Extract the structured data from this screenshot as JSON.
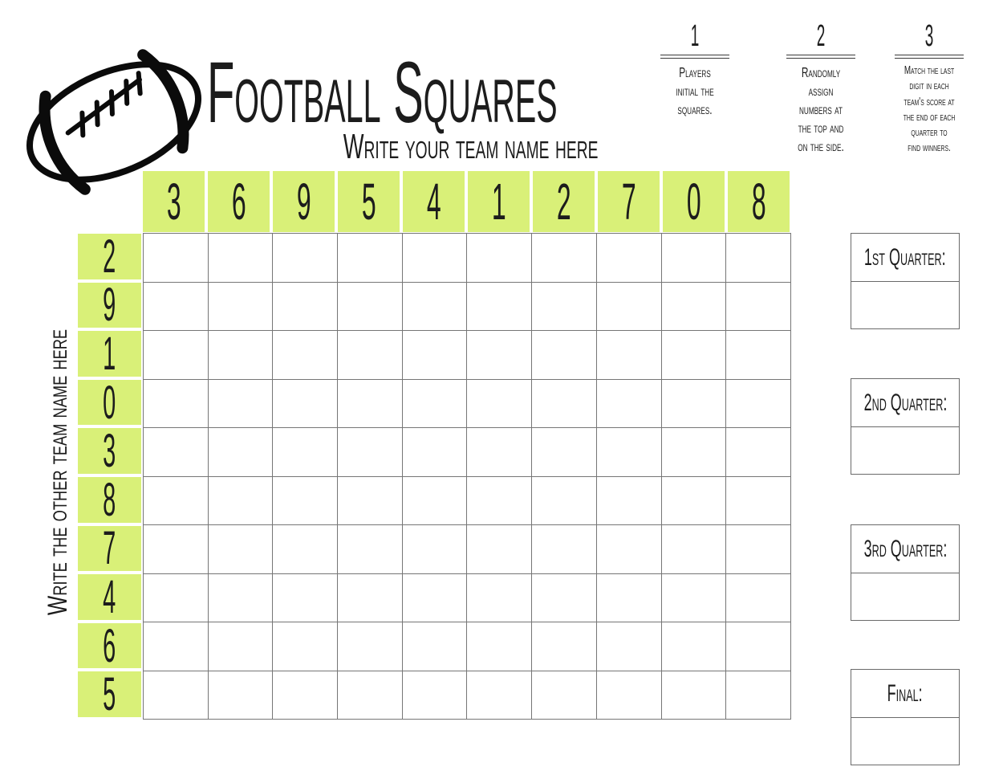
{
  "header": {
    "title": "Football Squares",
    "subtitle": "Write your team name here"
  },
  "instructions": [
    {
      "number": "1",
      "text": "Players\ninitial the\nsquares."
    },
    {
      "number": "2",
      "text": "Randomly\nassign\nnumbers at\nthe top and\non the side."
    },
    {
      "number": "3",
      "text": "Match the last\ndigit in each\nteam's score at\nthe end of each\nquarter to\nfind winners."
    }
  ],
  "board": {
    "side_label": "Write the other team name here",
    "top_numbers": [
      "3",
      "6",
      "9",
      "5",
      "4",
      "1",
      "2",
      "7",
      "0",
      "8"
    ],
    "side_numbers": [
      "2",
      "9",
      "1",
      "0",
      "3",
      "8",
      "7",
      "4",
      "6",
      "5"
    ],
    "rows": 10,
    "cols": 10,
    "square_value": "",
    "highlight_color": "#d9f078",
    "grid_line_color": "#767676"
  },
  "score_boxes": [
    {
      "label": "1st Quarter:",
      "value": ""
    },
    {
      "label": "2nd Quarter:",
      "value": ""
    },
    {
      "label": "3rd Quarter:",
      "value": ""
    },
    {
      "label": "Final:",
      "value": ""
    }
  ]
}
